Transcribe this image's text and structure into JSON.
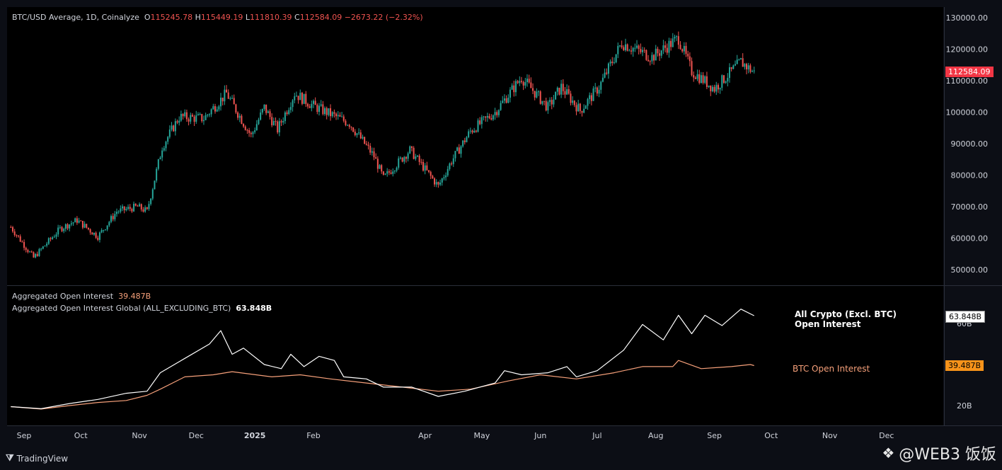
{
  "header": {
    "symbol": "BTC/USD Average, 1D, Coinalyze",
    "o_label": "O",
    "o": "115245.78",
    "h_label": "H",
    "h": "115449.19",
    "l_label": "L",
    "l": "111810.39",
    "c_label": "C",
    "c": "112584.09",
    "change": "−2673.22 (−2.32%)"
  },
  "lower_legend": {
    "line1_name": "Aggregated Open Interest",
    "line1_value": "39.487B",
    "line2_name": "Aggregated Open Interest Global (ALL_EXCLUDING_BTC)",
    "line2_value": "63.848B"
  },
  "annotations": {
    "alt_line1": "All Crypto (Excl. BTC)",
    "alt_line2": "Open Interest",
    "btc": "BTC Open Interest"
  },
  "price_tags": {
    "last_price": "112584.09",
    "alt_oi": "63.848B",
    "btc_oi": "39.487B"
  },
  "footer": {
    "brand": "TradingView",
    "watermark": "@WEB3 饭饭"
  },
  "colors": {
    "up": "#26a69a",
    "down": "#ef5350",
    "alt_line": "#ffffff",
    "btc_line": "#f6a07a",
    "btc_tag": "#f7931a",
    "price_tag": "#f23645"
  },
  "chart_data": [
    {
      "type": "candlestick",
      "title": "BTC/USD Average, 1D, Coinalyze",
      "y_ticks": [
        "130000.00",
        "120000.00",
        "110000.00",
        "100000.00",
        "90000.00",
        "80000.00",
        "70000.00",
        "60000.00",
        "50000.00"
      ],
      "ylim": [
        45000,
        132000
      ],
      "x_ticks": [
        "Sep",
        "Oct",
        "Nov",
        "Dec",
        "2025",
        "Feb",
        "Apr",
        "May",
        "Jun",
        "Jul",
        "Aug",
        "Sep",
        "Oct",
        "Nov",
        "Dec"
      ],
      "close_path": [
        [
          "2024-08-25",
          63500
        ],
        [
          "2024-09-06",
          53800
        ],
        [
          "2024-09-20",
          63000
        ],
        [
          "2024-09-29",
          65700
        ],
        [
          "2024-10-10",
          60500
        ],
        [
          "2024-10-20",
          68500
        ],
        [
          "2024-10-31",
          70000
        ],
        [
          "2024-11-05",
          68500
        ],
        [
          "2024-11-13",
          89000
        ],
        [
          "2024-11-22",
          98500
        ],
        [
          "2024-12-05",
          98000
        ],
        [
          "2024-12-17",
          106000
        ],
        [
          "2024-12-30",
          92500
        ],
        [
          "2025-01-06",
          101500
        ],
        [
          "2025-01-13",
          94500
        ],
        [
          "2025-01-22",
          106000
        ],
        [
          "2025-02-01",
          102000
        ],
        [
          "2025-02-20",
          96500
        ],
        [
          "2025-03-05",
          86000
        ],
        [
          "2025-03-10",
          79000
        ],
        [
          "2025-03-24",
          88000
        ],
        [
          "2025-04-08",
          76500
        ],
        [
          "2025-04-15",
          84500
        ],
        [
          "2025-04-25",
          94000
        ],
        [
          "2025-05-08",
          100000
        ],
        [
          "2025-05-22",
          111000
        ],
        [
          "2025-06-05",
          101500
        ],
        [
          "2025-06-12",
          108000
        ],
        [
          "2025-06-22",
          100500
        ],
        [
          "2025-07-02",
          108000
        ],
        [
          "2025-07-14",
          122000
        ],
        [
          "2025-07-30",
          117500
        ],
        [
          "2025-08-13",
          123500
        ],
        [
          "2025-08-20",
          113000
        ],
        [
          "2025-09-01",
          107500
        ],
        [
          "2025-09-15",
          116000
        ],
        [
          "2025-09-22",
          112584
        ]
      ],
      "last_price": 112584.09
    },
    {
      "type": "line",
      "y_ticks": [
        "60B",
        "20B"
      ],
      "series": [
        {
          "name": "Aggregated Open Interest Global (ALL_EXCLUDING_BTC)",
          "points": [
            [
              "2024-08-25",
              19.5
            ],
            [
              "2024-09-10",
              18.5
            ],
            [
              "2024-09-25",
              21
            ],
            [
              "2024-10-10",
              23
            ],
            [
              "2024-10-25",
              26
            ],
            [
              "2024-11-05",
              27
            ],
            [
              "2024-11-12",
              36
            ],
            [
              "2024-11-25",
              43
            ],
            [
              "2024-12-08",
              50
            ],
            [
              "2024-12-14",
              56.5
            ],
            [
              "2024-12-20",
              45
            ],
            [
              "2024-12-26",
              48
            ],
            [
              "2025-01-06",
              40
            ],
            [
              "2025-01-15",
              38
            ],
            [
              "2025-01-20",
              45
            ],
            [
              "2025-01-27",
              39
            ],
            [
              "2025-02-04",
              44
            ],
            [
              "2025-02-12",
              42
            ],
            [
              "2025-02-17",
              34
            ],
            [
              "2025-03-01",
              33
            ],
            [
              "2025-03-10",
              29
            ],
            [
              "2025-03-25",
              29
            ],
            [
              "2025-04-08",
              24.5
            ],
            [
              "2025-04-22",
              27
            ],
            [
              "2025-05-08",
              31
            ],
            [
              "2025-05-13",
              37
            ],
            [
              "2025-05-22",
              35
            ],
            [
              "2025-06-05",
              36
            ],
            [
              "2025-06-15",
              39
            ],
            [
              "2025-06-20",
              34
            ],
            [
              "2025-07-01",
              37
            ],
            [
              "2025-07-15",
              47
            ],
            [
              "2025-07-25",
              59.5
            ],
            [
              "2025-08-05",
              52
            ],
            [
              "2025-08-13",
              64
            ],
            [
              "2025-08-20",
              55
            ],
            [
              "2025-08-27",
              64
            ],
            [
              "2025-09-05",
              59
            ],
            [
              "2025-09-15",
              67
            ],
            [
              "2025-09-22",
              63.8
            ]
          ]
        },
        {
          "name": "Aggregated Open Interest",
          "points": [
            [
              "2024-08-25",
              19.5
            ],
            [
              "2024-09-10",
              18.3
            ],
            [
              "2024-09-25",
              20
            ],
            [
              "2024-10-10",
              21.5
            ],
            [
              "2024-10-25",
              22.5
            ],
            [
              "2024-11-05",
              25
            ],
            [
              "2024-11-12",
              28
            ],
            [
              "2024-11-25",
              34
            ],
            [
              "2024-12-10",
              35
            ],
            [
              "2024-12-20",
              36.5
            ],
            [
              "2025-01-10",
              34
            ],
            [
              "2025-01-25",
              35
            ],
            [
              "2025-02-10",
              33
            ],
            [
              "2025-03-01",
              31
            ],
            [
              "2025-03-20",
              29
            ],
            [
              "2025-04-08",
              27
            ],
            [
              "2025-04-25",
              28
            ],
            [
              "2025-05-15",
              32
            ],
            [
              "2025-06-01",
              35
            ],
            [
              "2025-06-20",
              33
            ],
            [
              "2025-07-10",
              36
            ],
            [
              "2025-07-25",
              39
            ],
            [
              "2025-08-10",
              39
            ],
            [
              "2025-08-13",
              42
            ],
            [
              "2025-08-25",
              38
            ],
            [
              "2025-09-10",
              39
            ],
            [
              "2025-09-20",
              40
            ],
            [
              "2025-09-22",
              39.5
            ]
          ]
        }
      ]
    }
  ]
}
